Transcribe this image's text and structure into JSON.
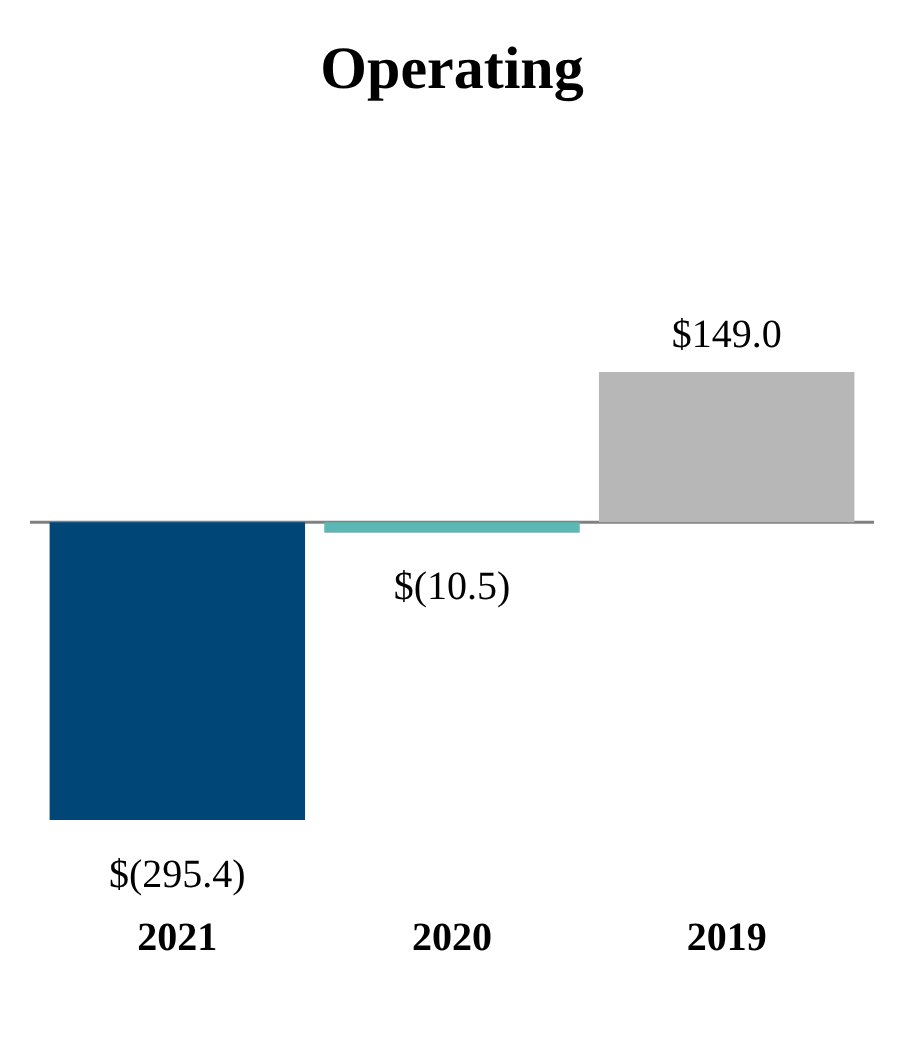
{
  "chart_data": {
    "type": "bar",
    "title": "Operating",
    "categories": [
      "2021",
      "2020",
      "2019"
    ],
    "values": [
      -295.4,
      -10.5,
      149.0
    ],
    "colors": [
      "#004677",
      "#5bb8b5",
      "#b7b7b7"
    ],
    "value_labels": [
      "$(295.4)",
      "$(10.5)",
      "$149.0"
    ],
    "legend": false,
    "grid": false
  }
}
